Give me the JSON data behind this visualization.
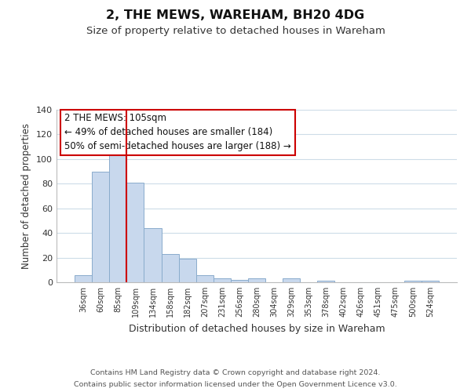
{
  "title": "2, THE MEWS, WAREHAM, BH20 4DG",
  "subtitle": "Size of property relative to detached houses in Wareham",
  "xlabel": "Distribution of detached houses by size in Wareham",
  "ylabel": "Number of detached properties",
  "bar_labels": [
    "36sqm",
    "60sqm",
    "85sqm",
    "109sqm",
    "134sqm",
    "158sqm",
    "182sqm",
    "207sqm",
    "231sqm",
    "256sqm",
    "280sqm",
    "304sqm",
    "329sqm",
    "353sqm",
    "378sqm",
    "402sqm",
    "426sqm",
    "451sqm",
    "475sqm",
    "500sqm",
    "524sqm"
  ],
  "bar_values": [
    6,
    90,
    103,
    81,
    44,
    23,
    19,
    6,
    3,
    2,
    3,
    0,
    3,
    0,
    1,
    0,
    0,
    0,
    0,
    1,
    1
  ],
  "bar_color": "#c8d8ed",
  "bar_edge_color": "#8aaccc",
  "vline_color": "#cc0000",
  "ylim": [
    0,
    140
  ],
  "yticks": [
    0,
    20,
    40,
    60,
    80,
    100,
    120,
    140
  ],
  "annotation_title": "2 THE MEWS: 105sqm",
  "annotation_line1": "← 49% of detached houses are smaller (184)",
  "annotation_line2": "50% of semi-detached houses are larger (188) →",
  "footer1": "Contains HM Land Registry data © Crown copyright and database right 2024.",
  "footer2": "Contains public sector information licensed under the Open Government Licence v3.0.",
  "bg_color": "#ffffff",
  "grid_color": "#cddce8",
  "title_fontsize": 11.5,
  "subtitle_fontsize": 9.5,
  "tick_fontsize": 7,
  "ylabel_fontsize": 8.5,
  "xlabel_fontsize": 9,
  "annotation_fontsize": 8.5,
  "footer_fontsize": 6.8
}
